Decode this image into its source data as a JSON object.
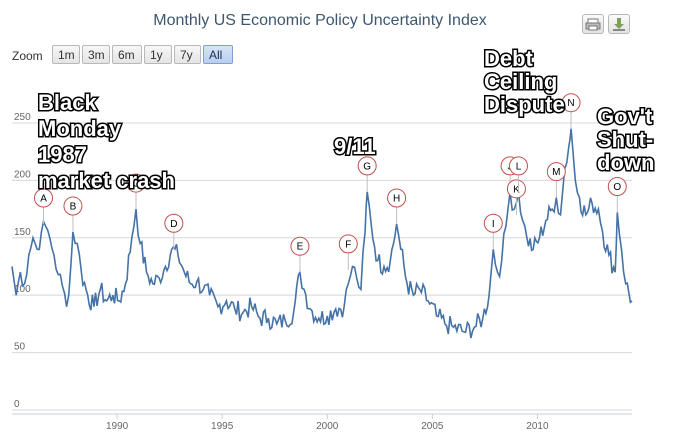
{
  "chart_data": {
    "type": "line",
    "title": "Monthly US Economic Policy Uncertainty Index",
    "xlabel": "",
    "ylabel": "",
    "xlim": [
      1985.0,
      2014.5
    ],
    "ylim": [
      0,
      270
    ],
    "yticks": [
      0,
      50,
      100,
      150,
      200,
      250
    ],
    "xticks": [
      1990,
      1995,
      2000,
      2005,
      2010
    ],
    "series_color": "#4572a7",
    "anchors": [
      [
        1985.0,
        125
      ],
      [
        1985.2,
        100
      ],
      [
        1985.4,
        120
      ],
      [
        1985.6,
        110
      ],
      [
        1985.8,
        135
      ],
      [
        1986.0,
        150
      ],
      [
        1986.2,
        140
      ],
      [
        1986.4,
        155
      ],
      [
        1986.6,
        160
      ],
      [
        1986.8,
        150
      ],
      [
        1987.0,
        135
      ],
      [
        1987.2,
        118
      ],
      [
        1987.4,
        108
      ],
      [
        1987.6,
        90
      ],
      [
        1987.8,
        125
      ],
      [
        1987.9,
        155
      ],
      [
        1988.1,
        145
      ],
      [
        1988.3,
        120
      ],
      [
        1988.6,
        100
      ],
      [
        1988.9,
        90
      ],
      [
        1989.2,
        105
      ],
      [
        1989.5,
        95
      ],
      [
        1989.8,
        100
      ],
      [
        1990.1,
        95
      ],
      [
        1990.4,
        110
      ],
      [
        1990.7,
        150
      ],
      [
        1990.9,
        175
      ],
      [
        1991.1,
        145
      ],
      [
        1991.4,
        120
      ],
      [
        1991.7,
        110
      ],
      [
        1992.0,
        115
      ],
      [
        1992.3,
        125
      ],
      [
        1992.6,
        140
      ],
      [
        1992.9,
        135
      ],
      [
        1993.2,
        120
      ],
      [
        1993.5,
        110
      ],
      [
        1993.8,
        112
      ],
      [
        1994.1,
        105
      ],
      [
        1994.4,
        100
      ],
      [
        1994.8,
        90
      ],
      [
        1995.2,
        95
      ],
      [
        1995.6,
        88
      ],
      [
        1996.0,
        85
      ],
      [
        1996.4,
        90
      ],
      [
        1996.8,
        80
      ],
      [
        1997.2,
        80
      ],
      [
        1997.6,
        75
      ],
      [
        1998.0,
        78
      ],
      [
        1998.4,
        85
      ],
      [
        1998.7,
        120
      ],
      [
        1998.9,
        105
      ],
      [
        1999.2,
        88
      ],
      [
        1999.6,
        80
      ],
      [
        2000.0,
        82
      ],
      [
        2000.4,
        88
      ],
      [
        2000.8,
        90
      ],
      [
        2001.0,
        110
      ],
      [
        2001.2,
        125
      ],
      [
        2001.4,
        115
      ],
      [
        2001.6,
        105
      ],
      [
        2001.8,
        155
      ],
      [
        2001.9,
        190
      ],
      [
        2002.1,
        160
      ],
      [
        2002.4,
        130
      ],
      [
        2002.7,
        125
      ],
      [
        2003.0,
        130
      ],
      [
        2003.3,
        162
      ],
      [
        2003.5,
        140
      ],
      [
        2003.8,
        110
      ],
      [
        2004.1,
        100
      ],
      [
        2004.4,
        105
      ],
      [
        2004.8,
        95
      ],
      [
        2005.2,
        82
      ],
      [
        2005.6,
        75
      ],
      [
        2006.0,
        72
      ],
      [
        2006.5,
        68
      ],
      [
        2007.0,
        72
      ],
      [
        2007.4,
        80
      ],
      [
        2007.7,
        100
      ],
      [
        2007.9,
        140
      ],
      [
        2008.1,
        120
      ],
      [
        2008.3,
        130
      ],
      [
        2008.5,
        160
      ],
      [
        2008.7,
        190
      ],
      [
        2008.9,
        175
      ],
      [
        2009.1,
        190
      ],
      [
        2009.3,
        165
      ],
      [
        2009.5,
        150
      ],
      [
        2009.8,
        140
      ],
      [
        2010.1,
        150
      ],
      [
        2010.4,
        165
      ],
      [
        2010.7,
        175
      ],
      [
        2010.9,
        185
      ],
      [
        2011.1,
        170
      ],
      [
        2011.3,
        210
      ],
      [
        2011.5,
        230
      ],
      [
        2011.6,
        245
      ],
      [
        2011.8,
        200
      ],
      [
        2012.0,
        185
      ],
      [
        2012.3,
        170
      ],
      [
        2012.6,
        180
      ],
      [
        2012.9,
        175
      ],
      [
        2013.1,
        155
      ],
      [
        2013.4,
        135
      ],
      [
        2013.7,
        120
      ],
      [
        2013.8,
        172
      ],
      [
        2014.0,
        140
      ],
      [
        2014.2,
        110
      ],
      [
        2014.5,
        95
      ]
    ],
    "markers": [
      {
        "letter": "A",
        "x": 1986.5,
        "y": 162
      },
      {
        "letter": "B",
        "x": 1987.9,
        "y": 155
      },
      {
        "letter": "C",
        "x": 1990.9,
        "y": 175
      },
      {
        "letter": "D",
        "x": 1992.7,
        "y": 140
      },
      {
        "letter": "E",
        "x": 1998.7,
        "y": 120
      },
      {
        "letter": "F",
        "x": 2001.0,
        "y": 122
      },
      {
        "letter": "G",
        "x": 2001.9,
        "y": 190
      },
      {
        "letter": "H",
        "x": 2003.3,
        "y": 162
      },
      {
        "letter": "I",
        "x": 2007.9,
        "y": 140
      },
      {
        "letter": "J",
        "x": 2008.7,
        "y": 190
      },
      {
        "letter": "K",
        "x": 2009.0,
        "y": 170
      },
      {
        "letter": "L",
        "x": 2009.1,
        "y": 190
      },
      {
        "letter": "M",
        "x": 2010.9,
        "y": 185
      },
      {
        "letter": "N",
        "x": 2011.6,
        "y": 245
      },
      {
        "letter": "O",
        "x": 2013.8,
        "y": 172
      }
    ],
    "annotations": [
      {
        "lines": [
          "Black",
          "Monday",
          "1987",
          "market crash"
        ]
      },
      {
        "lines": [
          "9/11"
        ]
      },
      {
        "lines": [
          "Debt",
          "Ceiling",
          "Dispute"
        ]
      },
      {
        "lines": [
          "Gov't",
          "Shut-",
          "down"
        ]
      }
    ]
  },
  "zoom": {
    "label": "Zoom",
    "buttons": [
      "1m",
      "3m",
      "6m",
      "1y",
      "7y",
      "All"
    ],
    "active": "All"
  },
  "toolbar": {
    "print_icon": "print-icon",
    "export_icon": "download-icon"
  }
}
